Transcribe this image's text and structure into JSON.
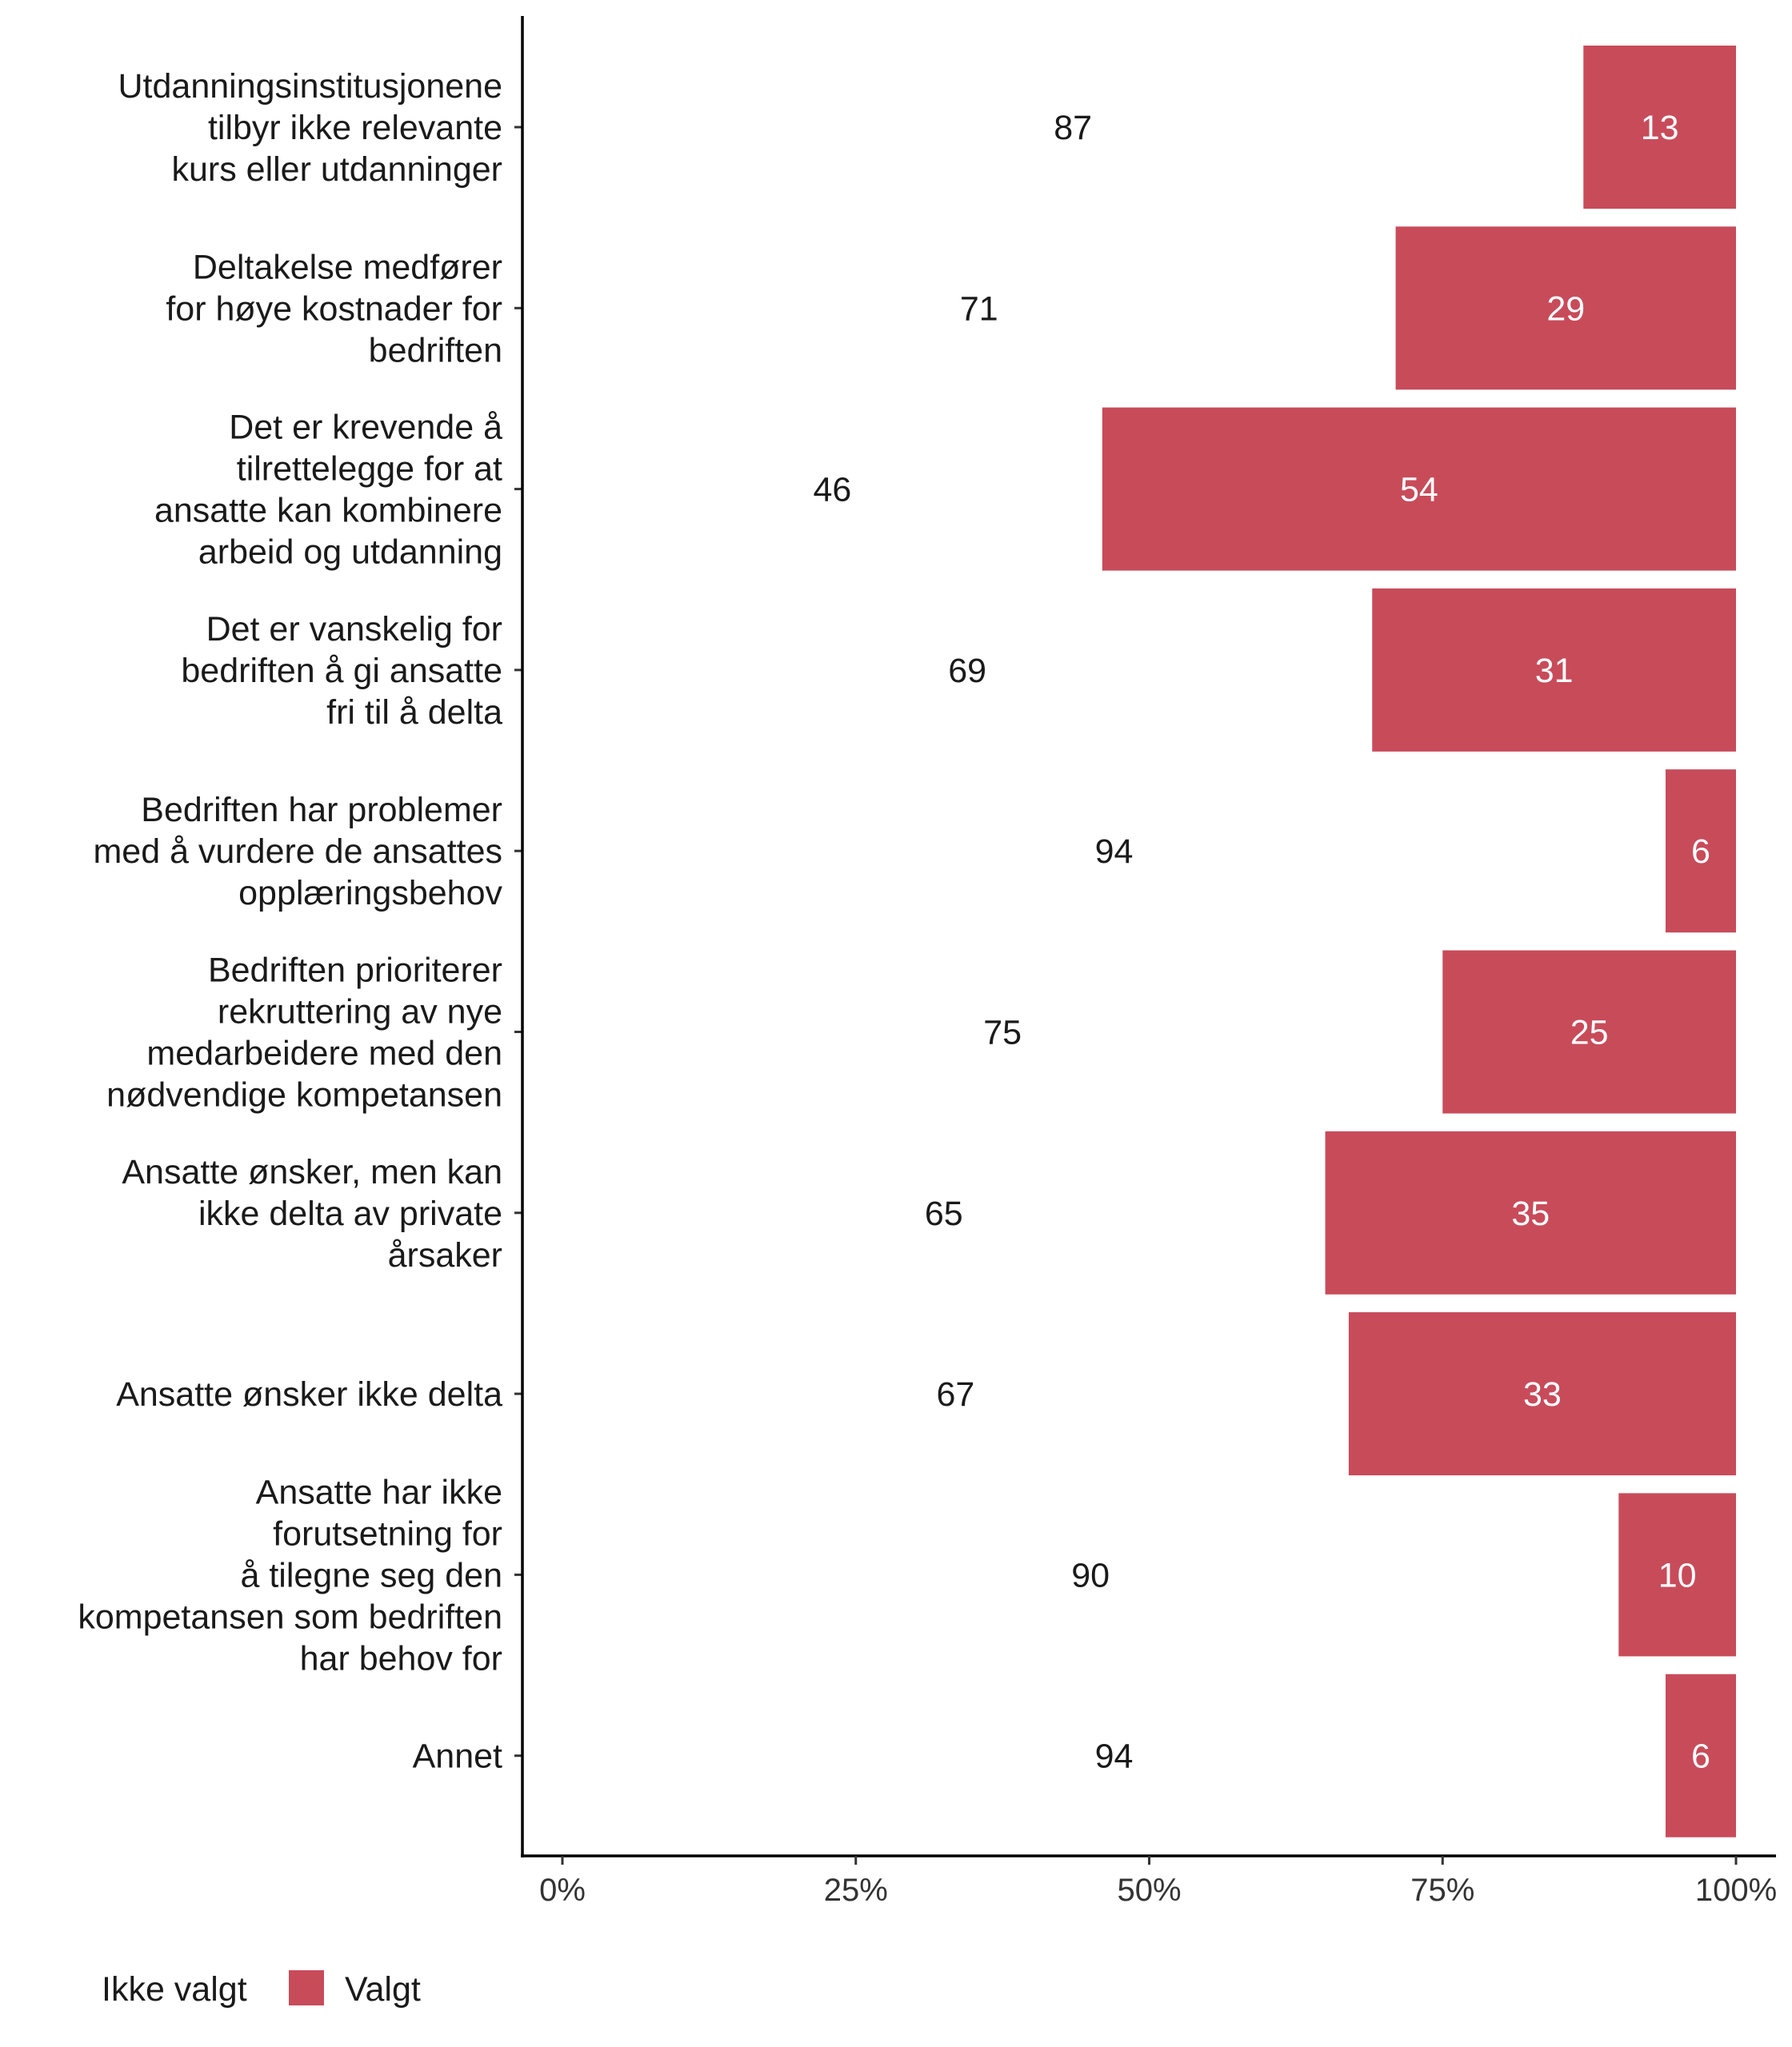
{
  "chart_data": {
    "type": "bar",
    "orientation": "horizontal",
    "stacked": "percent",
    "categories": [
      [
        "Utdanningsinstitusjonene",
        "tilbyr ikke relevante",
        "kurs eller utdanninger"
      ],
      [
        "Deltakelse medfører",
        "for høye kostnader for",
        "bedriften"
      ],
      [
        "Det er krevende å",
        "tilrettelegge for at",
        "ansatte kan kombinere",
        "arbeid og utdanning"
      ],
      [
        "Det er vanskelig for",
        "bedriften å gi ansatte",
        "fri til å delta"
      ],
      [
        "Bedriften har problemer",
        "med å vurdere de ansattes",
        "opplæringsbehov"
      ],
      [
        "Bedriften prioriterer",
        "rekruttering av nye",
        "medarbeidere med den",
        "nødvendige kompetansen"
      ],
      [
        "Ansatte ønsker, men kan",
        "ikke delta av private",
        "årsaker"
      ],
      [
        "Ansatte ønsker ikke delta"
      ],
      [
        "Ansatte har ikke",
        "forutsetning for",
        "å tilegne seg den",
        "kompetansen som bedriften",
        "har behov for"
      ],
      [
        "Annet"
      ]
    ],
    "series": [
      {
        "name": "Ikke valgt",
        "color": "#FFFFFF",
        "values": [
          87,
          71,
          46,
          69,
          94,
          75,
          65,
          67,
          90,
          94
        ]
      },
      {
        "name": "Valgt",
        "color": "#C84B5A",
        "values": [
          13,
          29,
          54,
          31,
          6,
          25,
          35,
          33,
          10,
          6
        ]
      }
    ],
    "xlim": [
      0,
      100
    ],
    "x_ticks": [
      "0%",
      "25%",
      "50%",
      "75%",
      "100%"
    ],
    "xlabel": "",
    "ylabel": "",
    "grid": false,
    "legend_position": "bottom-left"
  }
}
